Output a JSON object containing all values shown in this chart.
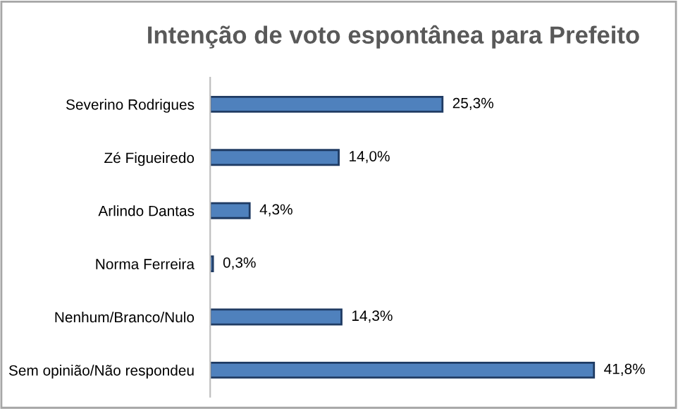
{
  "chart_data": {
    "type": "bar",
    "orientation": "horizontal",
    "title": "Intenção de voto espontânea para Prefeito",
    "categories": [
      "Severino Rodrigues",
      "Zé Figueiredo",
      "Arlindo Dantas",
      "Norma Ferreira",
      "Nenhum/Branco/Nulo",
      "Sem opinião/Não respondeu"
    ],
    "values": [
      25.3,
      14.0,
      4.3,
      0.3,
      14.3,
      41.8
    ],
    "value_labels": [
      "25,3%",
      "14,0%",
      "4,3%",
      "0,3%",
      "14,3%",
      "41,8%"
    ],
    "color": "#4f81bd",
    "tick_labels": "y",
    "grid": false,
    "legend": false
  }
}
